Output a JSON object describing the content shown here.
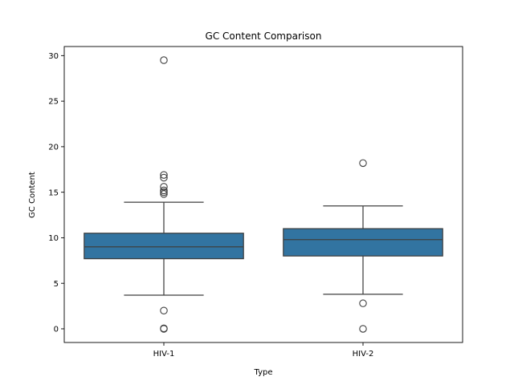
{
  "chart_data": {
    "type": "box",
    "title": "GC Content Comparison",
    "xlabel": "Type",
    "ylabel": "GC Content",
    "categories": [
      "HIV-1",
      "HIV-2"
    ],
    "boxes": [
      {
        "category": "HIV-1",
        "whisker_low": 3.7,
        "q1": 7.7,
        "median": 9.0,
        "q3": 10.5,
        "whisker_high": 13.9,
        "outliers": [
          29.5,
          16.9,
          16.6,
          15.6,
          15.2,
          15.0,
          14.8,
          2.0,
          0.05,
          0.0
        ]
      },
      {
        "category": "HIV-2",
        "whisker_low": 3.8,
        "q1": 8.0,
        "median": 9.8,
        "q3": 11.0,
        "whisker_high": 13.5,
        "outliers": [
          18.2,
          2.8,
          0.0
        ]
      }
    ],
    "yticks": [
      "0",
      "5",
      "10",
      "15",
      "20",
      "25",
      "30"
    ],
    "ylim": [
      -1.5,
      31.0
    ],
    "grid": false,
    "legend": "none",
    "colors": {
      "box_fill": "#3274a1",
      "line": "#3f3f3f"
    }
  }
}
